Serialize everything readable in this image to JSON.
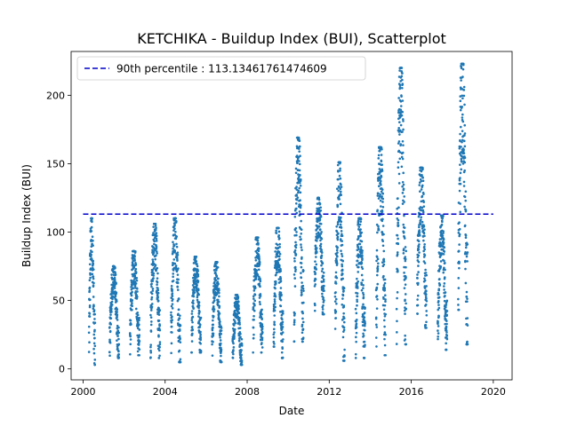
{
  "chart_data": {
    "type": "scatter",
    "title": "KETCHIKA - Buildup Index (BUI), Scatterplot",
    "xlabel": "Date",
    "ylabel": "Buildup Index (BUI)",
    "xlim": [
      "1999-06-01",
      "2020-12-01"
    ],
    "ylim": [
      -8,
      232
    ],
    "x_ticks": [
      "2000",
      "2004",
      "2008",
      "2012",
      "2016",
      "2020"
    ],
    "y_ticks": [
      "0",
      "50",
      "100",
      "150",
      "200"
    ],
    "grid": false,
    "legend_position": "top-left",
    "reference_line": {
      "label": "90th percentile : 113.13461761474609",
      "value": 113.13461761474609,
      "x_start": "2000-01-01",
      "x_end": "2020-01-01",
      "color": "#0000cc",
      "style": "dashed"
    },
    "series": [
      {
        "color": "#1f77b4",
        "seasons": [
          {
            "start": "2000-04-15",
            "end": "2000-08-01",
            "low": 3,
            "high": 110
          },
          {
            "start": "2001-04-15",
            "end": "2001-10-01",
            "low": 8,
            "high": 75
          },
          {
            "start": "2002-04-15",
            "end": "2002-10-01",
            "low": 10,
            "high": 86
          },
          {
            "start": "2003-04-15",
            "end": "2003-10-01",
            "low": 8,
            "high": 106
          },
          {
            "start": "2004-04-15",
            "end": "2004-10-01",
            "low": 5,
            "high": 110
          },
          {
            "start": "2005-04-15",
            "end": "2005-10-01",
            "low": 12,
            "high": 82
          },
          {
            "start": "2006-04-15",
            "end": "2006-10-01",
            "low": 5,
            "high": 78
          },
          {
            "start": "2007-04-15",
            "end": "2007-10-01",
            "low": 3,
            "high": 54
          },
          {
            "start": "2008-04-15",
            "end": "2008-10-01",
            "low": 12,
            "high": 96
          },
          {
            "start": "2009-04-15",
            "end": "2009-10-01",
            "low": 8,
            "high": 103
          },
          {
            "start": "2010-04-15",
            "end": "2010-10-01",
            "low": 20,
            "high": 169
          },
          {
            "start": "2011-04-15",
            "end": "2011-10-01",
            "low": 40,
            "high": 125
          },
          {
            "start": "2012-04-15",
            "end": "2012-10-01",
            "low": 6,
            "high": 151
          },
          {
            "start": "2013-04-15",
            "end": "2013-10-01",
            "low": 8,
            "high": 110
          },
          {
            "start": "2014-04-15",
            "end": "2014-10-01",
            "low": 10,
            "high": 162
          },
          {
            "start": "2015-04-15",
            "end": "2015-10-01",
            "low": 18,
            "high": 220
          },
          {
            "start": "2016-04-15",
            "end": "2016-10-01",
            "low": 30,
            "high": 147
          },
          {
            "start": "2017-04-15",
            "end": "2017-10-01",
            "low": 14,
            "high": 112
          },
          {
            "start": "2018-04-15",
            "end": "2018-10-01",
            "low": 18,
            "high": 223
          }
        ]
      }
    ]
  }
}
